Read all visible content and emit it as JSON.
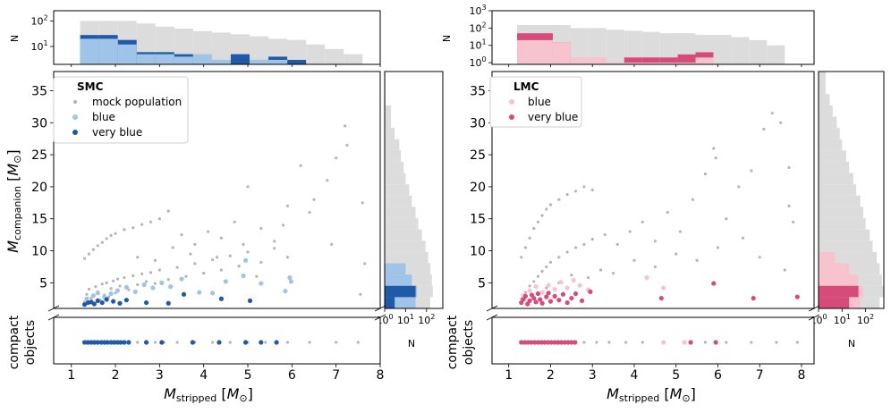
{
  "chart_data": [
    {
      "type": "scatter",
      "panel": "SMC",
      "legend_title": "SMC",
      "legend": [
        {
          "label": "mock population",
          "color": "#b5b5b5"
        },
        {
          "label": "blue",
          "color": "#9fc4e8"
        },
        {
          "label": "very blue",
          "color": "#1f5aa8"
        }
      ],
      "xlabel": "M_stripped [M_⊙]",
      "ylabel": "M_companion [M_⊙]",
      "compact_label": [
        "compact",
        "objects"
      ],
      "xlim": [
        0.6,
        8.0
      ],
      "ylim": [
        1,
        38
      ],
      "xticks": [
        1,
        2,
        3,
        4,
        5,
        6,
        7,
        8
      ],
      "yticks": [
        5,
        10,
        15,
        20,
        25,
        30,
        35
      ],
      "top_hist": {
        "ylabel": "N",
        "yticks": [
          "10^1",
          "10^2"
        ],
        "ylim_log": [
          2,
          250
        ]
      },
      "side_hist": {
        "xlabel": "N",
        "xticks": [
          "10^0",
          "10^1",
          "10^2"
        ]
      },
      "mock_points": [
        [
          1.3,
          2.0
        ],
        [
          1.35,
          3.2
        ],
        [
          1.4,
          4.0
        ],
        [
          1.45,
          2.6
        ],
        [
          1.5,
          3.0
        ],
        [
          1.55,
          4.4
        ],
        [
          1.6,
          3.6
        ],
        [
          1.65,
          2.3
        ],
        [
          1.7,
          4.8
        ],
        [
          1.75,
          3.1
        ],
        [
          1.8,
          5.0
        ],
        [
          1.85,
          2.8
        ],
        [
          1.9,
          4.1
        ],
        [
          1.95,
          5.3
        ],
        [
          2.0,
          3.4
        ],
        [
          2.05,
          5.6
        ],
        [
          2.1,
          4.5
        ],
        [
          2.2,
          5.8
        ],
        [
          2.3,
          3.9
        ],
        [
          2.4,
          6.1
        ],
        [
          2.5,
          4.7
        ],
        [
          2.6,
          6.4
        ],
        [
          2.7,
          5.2
        ],
        [
          2.8,
          6.6
        ],
        [
          2.9,
          4.9
        ],
        [
          3.0,
          7.0
        ],
        [
          3.2,
          5.5
        ],
        [
          3.4,
          7.4
        ],
        [
          3.6,
          6.0
        ],
        [
          3.8,
          8.0
        ],
        [
          4.0,
          6.5
        ],
        [
          4.2,
          8.6
        ],
        [
          4.4,
          7.0
        ],
        [
          4.6,
          9.2
        ],
        [
          4.8,
          7.6
        ],
        [
          5.0,
          9.8
        ],
        [
          5.3,
          8.2
        ],
        [
          5.6,
          10.4
        ],
        [
          5.9,
          9.0
        ],
        [
          1.3,
          8.8
        ],
        [
          1.4,
          9.5
        ],
        [
          1.5,
          10.2
        ],
        [
          1.6,
          10.8
        ],
        [
          1.7,
          11.3
        ],
        [
          1.8,
          11.9
        ],
        [
          1.9,
          12.4
        ],
        [
          2.0,
          12.7
        ],
        [
          2.2,
          13.3
        ],
        [
          2.4,
          13.6
        ],
        [
          2.6,
          14.1
        ],
        [
          2.8,
          14.5
        ],
        [
          3.0,
          15.0
        ],
        [
          3.2,
          16.2
        ],
        [
          3.5,
          12.5
        ],
        [
          3.8,
          11.0
        ],
        [
          4.1,
          13.0
        ],
        [
          4.4,
          12.0
        ],
        [
          4.7,
          14.5
        ],
        [
          5.0,
          20.0
        ],
        [
          5.3,
          13.5
        ],
        [
          5.6,
          11.5
        ],
        [
          5.9,
          17.0
        ],
        [
          6.2,
          23.3
        ],
        [
          6.5,
          18.0
        ],
        [
          6.8,
          21.0
        ],
        [
          7.0,
          24.5
        ],
        [
          7.2,
          29.5
        ],
        [
          7.25,
          26.5
        ],
        [
          7.6,
          17.5
        ],
        [
          7.65,
          8.0
        ],
        [
          7.55,
          3.2
        ],
        [
          6.9,
          11.0
        ],
        [
          6.4,
          16.0
        ],
        [
          5.8,
          14.0
        ],
        [
          5.2,
          6.0
        ],
        [
          4.9,
          11.0
        ],
        [
          4.3,
          9.0
        ],
        [
          3.7,
          9.5
        ],
        [
          3.3,
          10.5
        ],
        [
          2.9,
          8.5
        ],
        [
          2.5,
          9.0
        ]
      ],
      "mock_compact_x": [
        1.3,
        1.5,
        1.7,
        1.9,
        2.1,
        2.3,
        2.5,
        2.7,
        2.9,
        3.1,
        3.4,
        3.8,
        4.2,
        4.6,
        5.0,
        5.4,
        5.9,
        6.4,
        7.0,
        7.5
      ],
      "blue_points": [
        [
          1.35,
          2.5
        ],
        [
          1.5,
          3.0
        ],
        [
          1.6,
          3.4
        ],
        [
          1.75,
          2.8
        ],
        [
          1.9,
          3.3
        ],
        [
          2.05,
          3.8
        ],
        [
          2.25,
          4.3
        ],
        [
          2.45,
          3.6
        ],
        [
          2.65,
          4.7
        ],
        [
          2.85,
          4.2
        ],
        [
          3.05,
          5.0
        ],
        [
          3.25,
          4.4
        ],
        [
          3.5,
          5.6
        ],
        [
          3.9,
          3.5
        ],
        [
          4.2,
          3.4
        ],
        [
          4.5,
          5.2
        ],
        [
          4.9,
          6.1
        ],
        [
          4.95,
          8.5
        ],
        [
          5.3,
          4.9
        ],
        [
          5.85,
          3.7
        ],
        [
          5.95,
          5.8
        ],
        [
          5.98,
          5.2
        ]
      ],
      "very_blue_points": [
        [
          1.3,
          1.6
        ],
        [
          1.38,
          1.9
        ],
        [
          1.45,
          2.0
        ],
        [
          1.52,
          1.7
        ],
        [
          1.6,
          2.2
        ],
        [
          1.7,
          1.9
        ],
        [
          1.8,
          2.4
        ],
        [
          1.95,
          2.1
        ],
        [
          2.1,
          1.8
        ],
        [
          2.25,
          2.3
        ],
        [
          2.7,
          1.9
        ],
        [
          3.2,
          1.8
        ],
        [
          3.55,
          3.2
        ],
        [
          4.4,
          2.5
        ],
        [
          5.05,
          2.2
        ]
      ],
      "blue_compact_x": [
        1.35,
        1.55,
        1.75,
        1.95
      ],
      "very_blue_compact_x": [
        1.3,
        1.38,
        1.45,
        1.52,
        1.6,
        1.68,
        1.75,
        1.82,
        1.9,
        1.98,
        2.05,
        2.12,
        2.2,
        2.3,
        2.7,
        3.05,
        3.75,
        4.35,
        4.95,
        5.3,
        5.65
      ],
      "top_mock_bins": [
        100,
        100,
        100,
        80,
        60,
        50,
        40,
        35,
        30,
        25,
        20,
        18,
        12,
        8,
        5
      ],
      "top_blue_bins": [
        20,
        20,
        12,
        5,
        5,
        4,
        5,
        3,
        2,
        3,
        3,
        2,
        0,
        0,
        0
      ],
      "top_vblue_bins": [
        28,
        28,
        18,
        6,
        6,
        5,
        2,
        3,
        5,
        3,
        4,
        3,
        0,
        0,
        0
      ],
      "side_mock_bins": [
        150,
        200,
        180,
        150,
        120,
        90,
        60,
        40,
        30,
        20,
        15,
        10,
        8,
        6,
        5,
        3,
        2,
        2,
        1,
        1,
        1
      ],
      "side_blue_bins": [
        30,
        35,
        20,
        10,
        0,
        0,
        0,
        0,
        0,
        0,
        0,
        0,
        0,
        0,
        0,
        0,
        0,
        0,
        0,
        0,
        0
      ],
      "side_vblue_bins": [
        3,
        30,
        0,
        0,
        0,
        0,
        0,
        0,
        0,
        0,
        0,
        0,
        0,
        0,
        0,
        0,
        0,
        0,
        0,
        0,
        0
      ]
    },
    {
      "type": "scatter",
      "panel": "LMC",
      "legend_title": "LMC",
      "legend": [
        {
          "label": "blue",
          "color": "#f6c3ce"
        },
        {
          "label": "very blue",
          "color": "#d64b7a"
        }
      ],
      "xlabel": "M_stripped [M_⊙]",
      "ylabel": "",
      "compact_label": [
        "compact",
        "objects"
      ],
      "xlim": [
        0.6,
        8.3
      ],
      "ylim": [
        1,
        38
      ],
      "xticks": [
        1,
        2,
        3,
        4,
        5,
        6,
        7,
        8
      ],
      "yticks": [
        5,
        10,
        15,
        20,
        25,
        30,
        35
      ],
      "top_hist": {
        "ylabel": "N",
        "yticks": [
          "10^0",
          "10^1",
          "10^2",
          "10^3"
        ],
        "ylim_log": [
          0.8,
          1000
        ]
      },
      "side_hist": {
        "xlabel": "N",
        "xticks": [
          "10^0",
          "10^1",
          "10^2"
        ]
      },
      "mock_points": [
        [
          1.3,
          2.5
        ],
        [
          1.4,
          3.5
        ],
        [
          1.5,
          4.5
        ],
        [
          1.6,
          5.2
        ],
        [
          1.7,
          6.0
        ],
        [
          1.8,
          6.8
        ],
        [
          1.9,
          7.5
        ],
        [
          2.0,
          8.2
        ],
        [
          2.2,
          9.0
        ],
        [
          2.4,
          9.8
        ],
        [
          2.6,
          10.5
        ],
        [
          2.8,
          11.0
        ],
        [
          3.0,
          11.8
        ],
        [
          1.3,
          9.0
        ],
        [
          1.4,
          10.5
        ],
        [
          1.5,
          12.0
        ],
        [
          1.6,
          13.5
        ],
        [
          1.7,
          14.5
        ],
        [
          1.8,
          15.5
        ],
        [
          1.9,
          16.5
        ],
        [
          2.0,
          17.2
        ],
        [
          2.2,
          18.0
        ],
        [
          2.4,
          18.8
        ],
        [
          2.6,
          19.3
        ],
        [
          2.8,
          20.0
        ],
        [
          3.0,
          19.5
        ],
        [
          3.3,
          12.5
        ],
        [
          3.6,
          11.0
        ],
        [
          3.9,
          13.0
        ],
        [
          4.2,
          14.5
        ],
        [
          4.5,
          11.5
        ],
        [
          4.8,
          16.0
        ],
        [
          5.1,
          13.0
        ],
        [
          5.4,
          18.0
        ],
        [
          5.7,
          22.0
        ],
        [
          5.9,
          26.0
        ],
        [
          5.95,
          24.5
        ],
        [
          6.2,
          15.0
        ],
        [
          6.5,
          20.0
        ],
        [
          6.8,
          22.5
        ],
        [
          7.1,
          29.0
        ],
        [
          7.3,
          31.5
        ],
        [
          7.5,
          30.0
        ],
        [
          7.7,
          23.0
        ],
        [
          7.7,
          17.0
        ],
        [
          7.8,
          14.5
        ],
        [
          7.6,
          7.0
        ],
        [
          7.0,
          9.0
        ],
        [
          6.6,
          12.0
        ],
        [
          6.0,
          10.5
        ],
        [
          5.5,
          8.5
        ],
        [
          5.0,
          9.5
        ],
        [
          4.5,
          7.5
        ],
        [
          4.0,
          8.5
        ],
        [
          3.5,
          6.5
        ],
        [
          3.2,
          7.0
        ],
        [
          2.9,
          5.8
        ],
        [
          2.5,
          6.2
        ],
        [
          2.2,
          5.0
        ],
        [
          1.9,
          4.2
        ]
      ],
      "mock_compact_x": [
        1.3,
        1.6,
        1.9,
        2.2,
        2.5,
        2.8,
        3.1,
        3.4,
        3.8,
        4.2,
        4.7,
        5.2,
        5.7,
        6.2,
        6.8,
        7.4,
        7.9
      ],
      "blue_points": [
        [
          1.35,
          3.0
        ],
        [
          1.5,
          3.8
        ],
        [
          1.65,
          4.4
        ],
        [
          1.8,
          3.5
        ],
        [
          1.95,
          4.6
        ],
        [
          2.1,
          4.0
        ],
        [
          2.25,
          5.1
        ],
        [
          2.4,
          4.2
        ],
        [
          2.55,
          5.4
        ],
        [
          2.7,
          4.6
        ],
        [
          2.9,
          3.9
        ],
        [
          4.3,
          5.8
        ],
        [
          4.7,
          4.2
        ]
      ],
      "very_blue_points": [
        [
          1.3,
          1.9
        ],
        [
          1.35,
          2.4
        ],
        [
          1.4,
          2.9
        ],
        [
          1.45,
          1.7
        ],
        [
          1.5,
          2.2
        ],
        [
          1.55,
          3.1
        ],
        [
          1.6,
          2.6
        ],
        [
          1.65,
          2.0
        ],
        [
          1.7,
          3.3
        ],
        [
          1.75,
          2.4
        ],
        [
          1.8,
          1.8
        ],
        [
          1.9,
          2.8
        ],
        [
          1.95,
          3.4
        ],
        [
          2.0,
          2.1
        ],
        [
          2.1,
          2.9
        ],
        [
          2.2,
          2.3
        ],
        [
          2.3,
          3.2
        ],
        [
          2.4,
          1.9
        ],
        [
          2.5,
          2.6
        ],
        [
          2.6,
          3.3
        ],
        [
          2.75,
          2.2
        ],
        [
          2.95,
          3.6
        ],
        [
          4.65,
          2.6
        ],
        [
          5.9,
          4.9
        ],
        [
          6.85,
          2.6
        ],
        [
          7.9,
          2.8
        ]
      ],
      "blue_compact_x": [
        1.4,
        1.8,
        2.2,
        2.6,
        4.7,
        5.2
      ],
      "very_blue_compact_x": [
        1.3,
        1.38,
        1.46,
        1.54,
        1.62,
        1.7,
        1.78,
        1.86,
        1.94,
        2.02,
        2.1,
        2.18,
        2.26,
        2.34,
        2.42,
        2.5,
        2.58,
        5.35,
        5.95
      ],
      "top_mock_bins": [
        150,
        150,
        150,
        100,
        100,
        80,
        70,
        60,
        50,
        50,
        40,
        40,
        30,
        20,
        10
      ],
      "top_blue_bins": [
        20,
        20,
        15,
        2,
        2,
        1,
        1,
        1,
        1,
        1,
        2,
        0,
        0,
        0,
        0
      ],
      "top_vblue_bins": [
        50,
        50,
        15,
        0,
        0,
        0,
        2,
        2,
        2,
        3,
        4,
        0,
        0,
        0,
        0
      ],
      "side_mock_bins": [
        400,
        600,
        500,
        400,
        300,
        200,
        150,
        100,
        80,
        60,
        40,
        30,
        20,
        15,
        10,
        8,
        6,
        4,
        3,
        2,
        2
      ],
      "side_blue_bins": [
        60,
        80,
        50,
        20,
        5,
        0,
        0,
        0,
        0,
        0,
        0,
        0,
        0,
        0,
        0,
        0,
        0,
        0,
        0,
        0,
        0
      ],
      "side_vblue_bins": [
        20,
        50,
        0,
        0,
        0,
        0,
        0,
        0,
        0,
        0,
        0,
        0,
        0,
        0,
        0,
        0,
        0,
        0,
        0,
        0,
        0
      ]
    }
  ]
}
